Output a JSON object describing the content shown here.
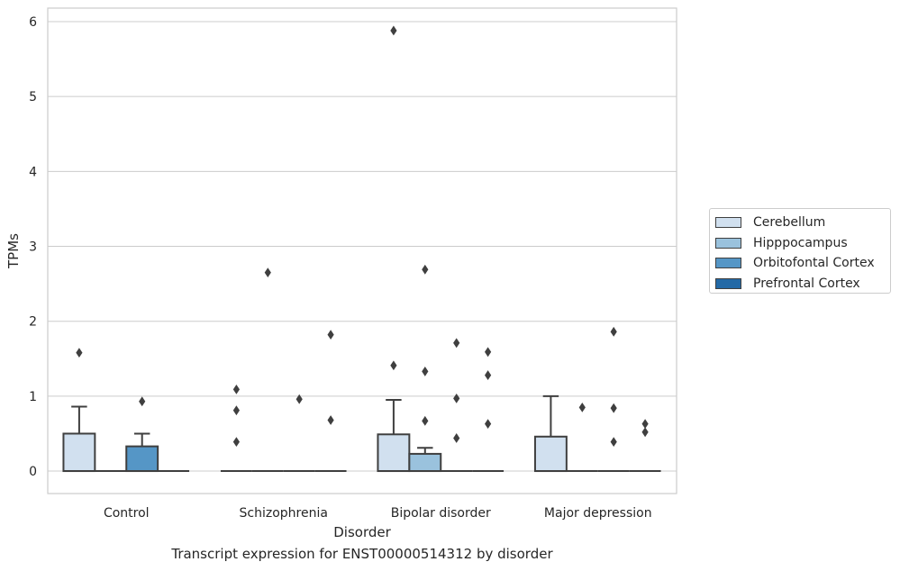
{
  "chart_data": {
    "type": "box",
    "xlabel": "Disorder",
    "ylabel": "TPMs",
    "caption": "Transcript expression for ENST00000514312 by disorder",
    "ylim": [
      -0.3,
      6.18
    ],
    "yticks": [
      0,
      1,
      2,
      3,
      4,
      5,
      6
    ],
    "grid": true,
    "legend_position": "right",
    "categories": [
      "Control",
      "Schizophrenia",
      "Bipolar disorder",
      "Major depression"
    ],
    "series": [
      {
        "name": "Cerebellum",
        "color": "#d1e0ef"
      },
      {
        "name": "Hipppocampus",
        "color": "#9ac2dd"
      },
      {
        "name": "Orbitofontal Cortex",
        "color": "#5596c6"
      },
      {
        "name": "Prefrontal Cortex",
        "color": "#2369a6"
      }
    ],
    "boxes": [
      [
        {
          "q1": 0,
          "median": 0,
          "q3": 0.5,
          "whisker_low": 0,
          "whisker_high": 0.86,
          "outliers": [
            1.58
          ]
        },
        {
          "q1": 0,
          "median": 0,
          "q3": 0,
          "whisker_low": 0,
          "whisker_high": 0,
          "outliers": []
        },
        {
          "q1": 0,
          "median": 0,
          "q3": 0.33,
          "whisker_low": 0,
          "whisker_high": 0.5,
          "outliers": [
            0.93
          ]
        },
        {
          "q1": 0,
          "median": 0,
          "q3": 0,
          "whisker_low": 0,
          "whisker_high": 0,
          "outliers": []
        }
      ],
      [
        {
          "q1": 0,
          "median": 0,
          "q3": 0,
          "whisker_low": 0,
          "whisker_high": 0,
          "outliers": [
            0.39,
            0.81,
            1.09
          ]
        },
        {
          "q1": 0,
          "median": 0,
          "q3": 0,
          "whisker_low": 0,
          "whisker_high": 0,
          "outliers": [
            2.65
          ]
        },
        {
          "q1": 0,
          "median": 0,
          "q3": 0,
          "whisker_low": 0,
          "whisker_high": 0,
          "outliers": [
            0.96
          ]
        },
        {
          "q1": 0,
          "median": 0,
          "q3": 0,
          "whisker_low": 0,
          "whisker_high": 0,
          "outliers": [
            0.68,
            1.82
          ]
        }
      ],
      [
        {
          "q1": 0,
          "median": 0,
          "q3": 0.49,
          "whisker_low": 0,
          "whisker_high": 0.95,
          "outliers": [
            1.41,
            5.88
          ]
        },
        {
          "q1": 0,
          "median": 0,
          "q3": 0.23,
          "whisker_low": 0,
          "whisker_high": 0.31,
          "outliers": [
            0.67,
            1.33,
            2.69
          ]
        },
        {
          "q1": 0,
          "median": 0,
          "q3": 0,
          "whisker_low": 0,
          "whisker_high": 0,
          "outliers": [
            0.44,
            0.97,
            1.71
          ]
        },
        {
          "q1": 0,
          "median": 0,
          "q3": 0,
          "whisker_low": 0,
          "whisker_high": 0,
          "outliers": [
            0.63,
            1.28,
            1.59
          ]
        }
      ],
      [
        {
          "q1": 0,
          "median": 0,
          "q3": 0.46,
          "whisker_low": 0,
          "whisker_high": 1.0,
          "outliers": []
        },
        {
          "q1": 0,
          "median": 0,
          "q3": 0,
          "whisker_low": 0,
          "whisker_high": 0,
          "outliers": [
            0.85
          ]
        },
        {
          "q1": 0,
          "median": 0,
          "q3": 0,
          "whisker_low": 0,
          "whisker_high": 0,
          "outliers": [
            0.39,
            0.84,
            1.86
          ]
        },
        {
          "q1": 0,
          "median": 0,
          "q3": 0,
          "whisker_low": 0,
          "whisker_high": 0,
          "outliers": [
            0.52,
            0.63
          ]
        }
      ]
    ]
  }
}
